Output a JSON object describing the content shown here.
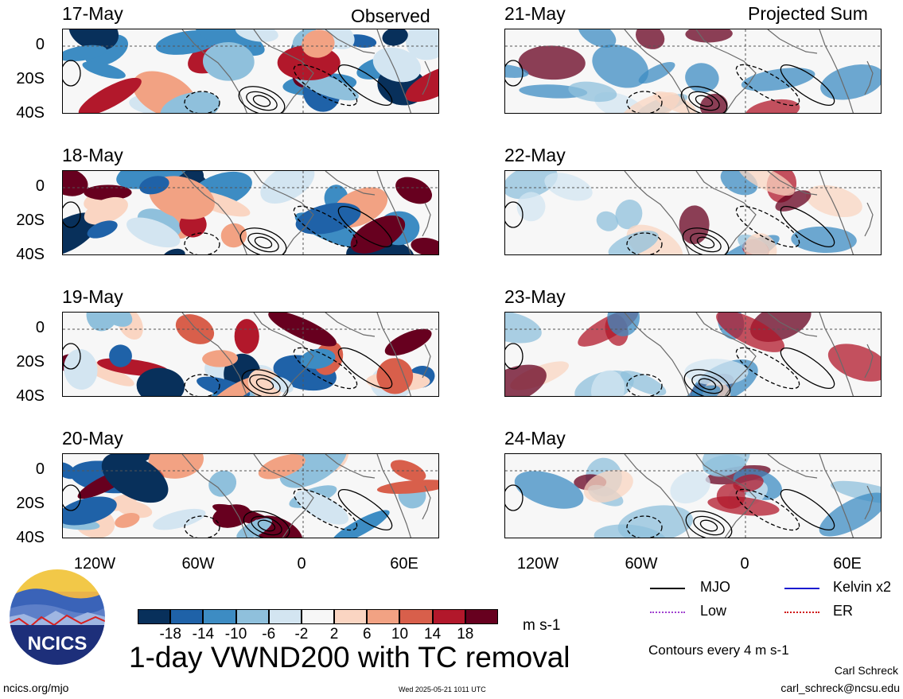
{
  "header": {
    "left_title": "Observed",
    "right_title": "Projected Sum"
  },
  "panels": {
    "observed_dates": [
      "17-May",
      "18-May",
      "19-May",
      "20-May"
    ],
    "projected_dates": [
      "21-May",
      "22-May",
      "23-May",
      "24-May"
    ]
  },
  "chart_data": {
    "type": "heatmap",
    "title": "1-day VWND200 with TC removal",
    "units": "m s-1",
    "lat_ticks": [
      "0",
      "20S",
      "40S"
    ],
    "lon_ticks": [
      "120W",
      "60W",
      "0",
      "60E"
    ],
    "lat_range": [
      -40,
      10
    ],
    "lon_range": [
      -160,
      80
    ],
    "colorbar_levels": [
      -18,
      -14,
      -10,
      -6,
      -2,
      2,
      6,
      10,
      14,
      18
    ],
    "colorbar_colors": [
      "#08305b",
      "#1f62a8",
      "#3d8cc3",
      "#8fc0dc",
      "#d3e5f1",
      "#f7f7f7",
      "#fad5c2",
      "#f2a283",
      "#d85f4b",
      "#b2182b",
      "#67001f"
    ],
    "contour_note": "Contours every 4 m s-1",
    "legend": [
      {
        "label": "MJO",
        "color": "#000000"
      },
      {
        "label": "Kelvin x2",
        "color": "#1a1ad0"
      },
      {
        "label": "Low",
        "color": "#a040d0"
      },
      {
        "label": "ER",
        "color": "#d01818"
      }
    ]
  },
  "footer": {
    "logo_text": "NCICS",
    "site": "ncics.org/mjo",
    "timestamp": "Wed 2025-05-21 1011 UTC",
    "author": "Carl Schreck",
    "email": "carl_schreck@ncsu.edu"
  }
}
